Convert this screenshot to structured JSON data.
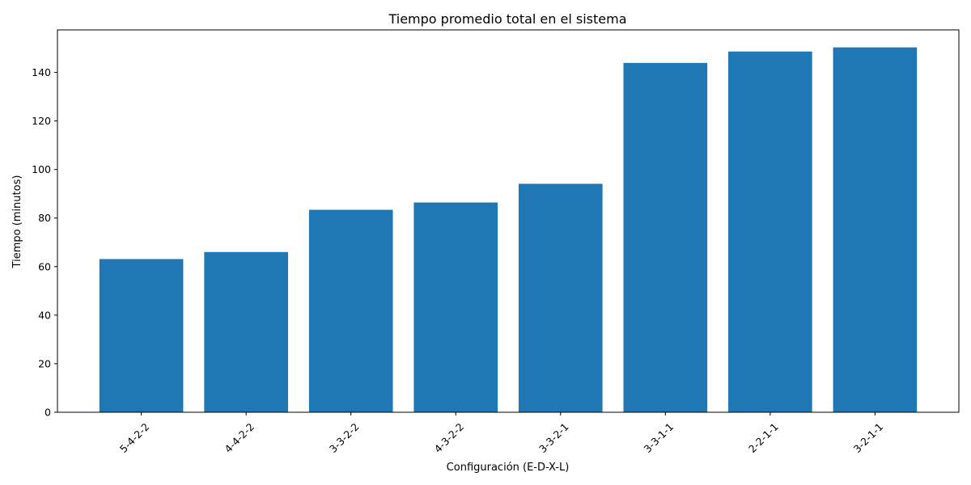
{
  "chart_data": {
    "type": "bar",
    "title": "Tiempo promedio total en el sistema",
    "xlabel": "Configuración (E-D-X-L)",
    "ylabel": "Tiempo (minutos)",
    "categories": [
      "5-4-2-2",
      "4-4-2-2",
      "3-3-2-2",
      "4-3-2-2",
      "3-3-2-1",
      "3-3-1-1",
      "2-2-1-1",
      "3-2-1-1"
    ],
    "values": [
      63.1,
      66.0,
      83.4,
      86.4,
      94.1,
      143.9,
      148.6,
      150.3
    ],
    "ylim": [
      0,
      157.5
    ],
    "yticks": [
      0,
      20,
      40,
      60,
      80,
      100,
      120,
      140
    ],
    "bar_color": "#1f77b4",
    "grid": false
  }
}
